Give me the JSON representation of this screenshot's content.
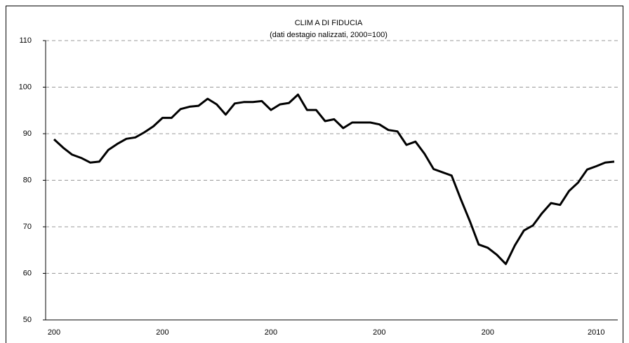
{
  "chart_data": {
    "type": "line",
    "title": "CLIM A DI FIDUCIA",
    "subtitle": "(dati destagio nalizzati, 2000=100)",
    "categories": [
      "200",
      null,
      null,
      null,
      null,
      null,
      null,
      null,
      null,
      null,
      null,
      null,
      "200",
      null,
      null,
      null,
      null,
      null,
      null,
      null,
      null,
      null,
      null,
      null,
      "200",
      null,
      null,
      null,
      null,
      null,
      null,
      null,
      null,
      null,
      null,
      null,
      "200",
      null,
      null,
      null,
      null,
      null,
      null,
      null,
      null,
      null,
      null,
      null,
      "200",
      null,
      null,
      null,
      null,
      null,
      null,
      null,
      null,
      null,
      null,
      null,
      "2010",
      null,
      null
    ],
    "series": [
      {
        "name": "Clima di fiducia",
        "color": "#000000",
        "values": [
          88.8,
          87,
          85.5,
          84.8,
          83.8,
          84,
          86.5,
          87.8,
          88.9,
          89.2,
          90.3,
          91.6,
          93.4,
          93.4,
          95.3,
          95.8,
          96,
          97.5,
          96.3,
          94.1,
          96.5,
          96.8,
          96.8,
          97,
          95.1,
          96.3,
          96.6,
          98.4,
          95.1,
          95.1,
          92.7,
          93.1,
          91.2,
          92.4,
          92.4,
          92.4,
          92,
          90.8,
          90.5,
          87.6,
          88.3,
          85.7,
          82.4,
          81.7,
          81,
          76,
          71.3,
          66.2,
          65.5,
          64,
          62,
          66,
          69.2,
          70.3,
          72.9,
          75.1,
          74.7,
          77.7,
          79.5,
          82.3,
          83,
          83.8,
          84
        ]
      }
    ],
    "ylim": [
      50,
      110
    ],
    "yticks": [
      50,
      60,
      70,
      80,
      90,
      100,
      110
    ],
    "grid": true
  }
}
